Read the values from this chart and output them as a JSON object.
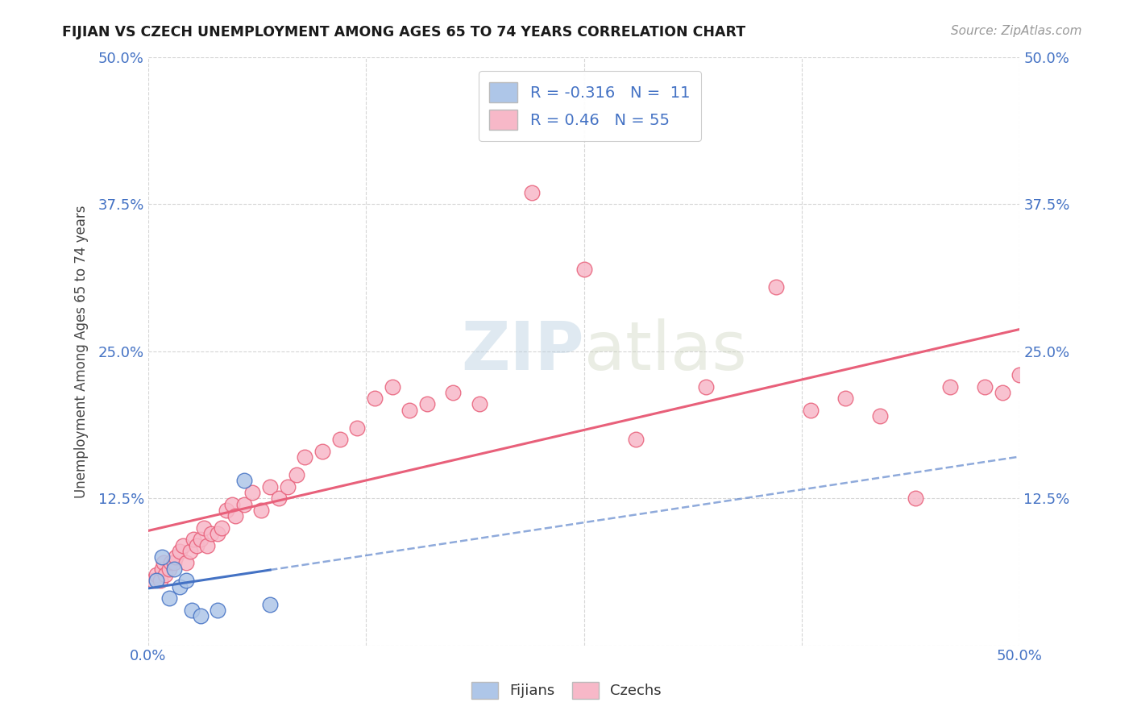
{
  "title": "FIJIAN VS CZECH UNEMPLOYMENT AMONG AGES 65 TO 74 YEARS CORRELATION CHART",
  "source": "Source: ZipAtlas.com",
  "ylabel": "Unemployment Among Ages 65 to 74 years",
  "xlim": [
    0.0,
    0.5
  ],
  "ylim": [
    0.0,
    0.5
  ],
  "xticks": [
    0.0,
    0.125,
    0.25,
    0.375,
    0.5
  ],
  "yticks": [
    0.0,
    0.125,
    0.25,
    0.375,
    0.5
  ],
  "fijian_color": "#aec6e8",
  "czech_color": "#f7b8c8",
  "fijian_line_color": "#4472c4",
  "czech_line_color": "#e8607a",
  "fijian_R": -0.316,
  "fijian_N": 11,
  "czech_R": 0.46,
  "czech_N": 55,
  "background_color": "#ffffff",
  "grid_color": "#cccccc",
  "fijians_x": [
    0.005,
    0.008,
    0.012,
    0.015,
    0.018,
    0.022,
    0.025,
    0.03,
    0.04,
    0.055,
    0.07
  ],
  "fijians_y": [
    0.055,
    0.075,
    0.04,
    0.065,
    0.05,
    0.055,
    0.03,
    0.025,
    0.03,
    0.14,
    0.035
  ],
  "czechs_x": [
    0.003,
    0.005,
    0.007,
    0.008,
    0.009,
    0.01,
    0.012,
    0.013,
    0.015,
    0.016,
    0.018,
    0.02,
    0.022,
    0.024,
    0.026,
    0.028,
    0.03,
    0.032,
    0.034,
    0.036,
    0.04,
    0.042,
    0.045,
    0.048,
    0.05,
    0.055,
    0.06,
    0.065,
    0.07,
    0.075,
    0.08,
    0.085,
    0.09,
    0.1,
    0.11,
    0.12,
    0.13,
    0.14,
    0.15,
    0.16,
    0.175,
    0.19,
    0.22,
    0.25,
    0.28,
    0.32,
    0.36,
    0.38,
    0.4,
    0.42,
    0.44,
    0.46,
    0.48,
    0.49,
    0.5
  ],
  "czechs_y": [
    0.055,
    0.06,
    0.055,
    0.065,
    0.07,
    0.06,
    0.065,
    0.07,
    0.07,
    0.075,
    0.08,
    0.085,
    0.07,
    0.08,
    0.09,
    0.085,
    0.09,
    0.1,
    0.085,
    0.095,
    0.095,
    0.1,
    0.115,
    0.12,
    0.11,
    0.12,
    0.13,
    0.115,
    0.135,
    0.125,
    0.135,
    0.145,
    0.16,
    0.165,
    0.175,
    0.185,
    0.21,
    0.22,
    0.2,
    0.205,
    0.215,
    0.205,
    0.385,
    0.32,
    0.175,
    0.22,
    0.305,
    0.2,
    0.21,
    0.195,
    0.125,
    0.22,
    0.22,
    0.215,
    0.23
  ]
}
